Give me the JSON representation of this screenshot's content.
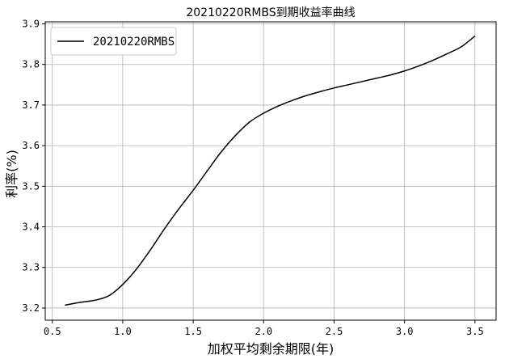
{
  "chart_data": {
    "type": "line",
    "title": "20210220RMBS到期收益率曲线",
    "xlabel": "加权平均剩余期限(年)",
    "ylabel": "利率(%)",
    "xlim": [
      0.45,
      3.65
    ],
    "ylim": [
      3.17,
      3.905
    ],
    "xticks": [
      0.5,
      1.0,
      1.5,
      2.0,
      2.5,
      3.0,
      3.5
    ],
    "xtick_labels": [
      "0.5",
      "1.0",
      "1.5",
      "2.0",
      "2.5",
      "3.0",
      "3.5"
    ],
    "yticks": [
      3.2,
      3.3,
      3.4,
      3.5,
      3.6,
      3.7,
      3.8,
      3.9
    ],
    "ytick_labels": [
      "3.2",
      "3.3",
      "3.4",
      "3.5",
      "3.6",
      "3.7",
      "3.8",
      "3.9"
    ],
    "grid": true,
    "legend_position": "top-left",
    "series": [
      {
        "name": "20210220RMBS",
        "color": "#000000",
        "x": [
          0.59,
          0.7,
          0.8,
          0.9,
          1.0,
          1.1,
          1.2,
          1.3,
          1.4,
          1.5,
          1.6,
          1.7,
          1.8,
          1.9,
          2.0,
          2.1,
          2.2,
          2.3,
          2.4,
          2.5,
          2.6,
          2.7,
          2.8,
          2.9,
          3.0,
          3.1,
          3.2,
          3.3,
          3.4,
          3.5
        ],
        "y": [
          3.207,
          3.214,
          3.219,
          3.23,
          3.258,
          3.297,
          3.345,
          3.397,
          3.445,
          3.49,
          3.538,
          3.585,
          3.625,
          3.658,
          3.68,
          3.697,
          3.711,
          3.723,
          3.733,
          3.742,
          3.75,
          3.758,
          3.766,
          3.774,
          3.784,
          3.796,
          3.81,
          3.826,
          3.843,
          3.87
        ]
      }
    ]
  }
}
